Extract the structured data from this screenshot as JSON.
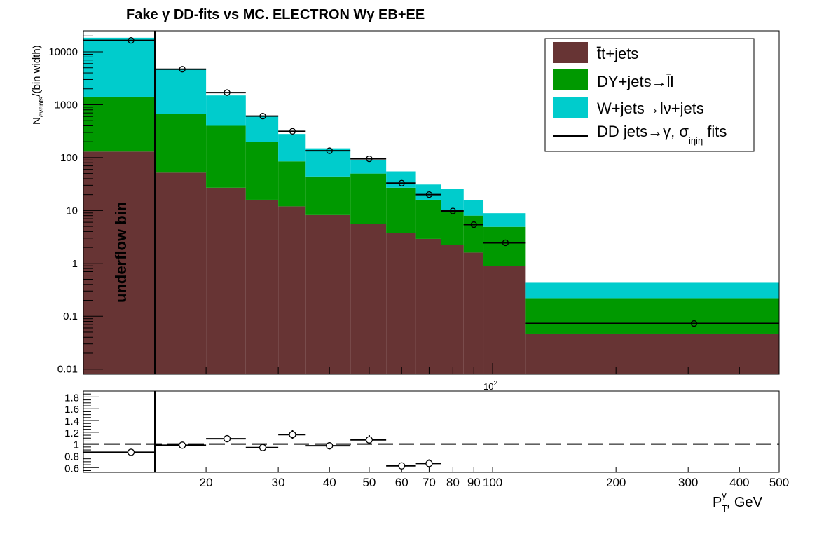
{
  "chart_data": {
    "type": "bar",
    "title": "Fake γ DD-fits vs MC. ELECTRON Wγ  EB+EE",
    "ylabel": "N_events/(bin width)",
    "ylabel_main": "N",
    "ylabel_sub": "events",
    "ylabel_rest": "/(bin width)",
    "xlabel": "P_T^γ, GeV",
    "xlabel_main": "P",
    "xlabel_sub": "T",
    "xlabel_sup": "γ",
    "xlabel_rest": ", GeV",
    "x_scale": "log",
    "y_scale": "log",
    "ylim": [
      0.008,
      25000
    ],
    "xlim": [
      10.5,
      500
    ],
    "annotation": "underflow bin",
    "axis_multiplier": "10",
    "axis_multiplier_exp": "2",
    "legend_position": "top-right",
    "bin_edges": [
      10.5,
      15,
      20,
      25,
      30,
      35,
      45,
      55,
      65,
      75,
      85,
      95,
      120,
      500
    ],
    "series": [
      {
        "name": "t̄t+jets",
        "color": "#673434",
        "values": [
          130,
          52,
          27,
          16,
          12,
          8.2,
          5.5,
          3.8,
          2.9,
          2.2,
          1.6,
          0.9,
          0.047
        ]
      },
      {
        "name": "DY+jets→l̄l",
        "color": "#009900",
        "values": [
          1290,
          628,
          373,
          184,
          73,
          35.8,
          44.5,
          23.2,
          13.1,
          7.8,
          6.4,
          4.0,
          0.173
        ]
      },
      {
        "name": "W+jets→lν+jets",
        "color": "#00cccc",
        "values": [
          17080,
          4000,
          1100,
          400,
          195,
          106,
          40,
          28,
          15,
          16,
          7.6,
          4.0,
          0.21
        ]
      }
    ],
    "stack_totals": [
      18500,
      4680,
      1500,
      600,
      280,
      150,
      90,
      55,
      31,
      26,
      15.6,
      8.9,
      0.43
    ],
    "dd_fit": {
      "name": "DD jets→γ, σ_iηiη fits",
      "legend_main": "DD jets→γ, σ",
      "legend_sub": "iηiη",
      "legend_rest": " fits",
      "points": [
        {
          "x": 13.5,
          "xlo": 10.5,
          "xhi": 15,
          "y": 16500
        },
        {
          "x": 17.5,
          "xlo": 15,
          "xhi": 20,
          "y": 4700
        },
        {
          "x": 22.5,
          "xlo": 20,
          "xhi": 25,
          "y": 1700
        },
        {
          "x": 27.5,
          "xlo": 25,
          "xhi": 30,
          "y": 610
        },
        {
          "x": 32.5,
          "xlo": 30,
          "xhi": 35,
          "y": 315
        },
        {
          "x": 40,
          "xlo": 35,
          "xhi": 45,
          "y": 135
        },
        {
          "x": 50,
          "xlo": 45,
          "xhi": 55,
          "y": 95
        },
        {
          "x": 60,
          "xlo": 55,
          "xhi": 65,
          "y": 33
        },
        {
          "x": 70,
          "xlo": 65,
          "xhi": 75,
          "y": 20
        },
        {
          "x": 80,
          "xlo": 75,
          "xhi": 85,
          "y": 9.8
        },
        {
          "x": 90,
          "xlo": 85,
          "xhi": 95,
          "y": 5.4
        },
        {
          "x": 107.5,
          "xlo": 95,
          "xhi": 120,
          "y": 2.45
        },
        {
          "x": 310,
          "xlo": 120,
          "xhi": 500,
          "y": 0.073
        }
      ]
    },
    "y_ticks": [
      "0.01",
      "0.1",
      "1",
      "10",
      "100",
      "1000",
      "10000"
    ],
    "x_ticks": [
      "20",
      "30",
      "40",
      "50",
      "60",
      "70",
      "80",
      "90",
      "100",
      "200",
      "300",
      "400",
      "500"
    ],
    "ratio": {
      "ylim": [
        0.52,
        1.9
      ],
      "y_ticks": [
        "0.6",
        "0.8",
        "1",
        "1.2",
        "1.4",
        "1.6",
        "1.8"
      ],
      "reference": 1.0,
      "points": [
        {
          "x": 13.5,
          "xlo": 10.5,
          "xhi": 15,
          "y": 0.86,
          "err": 0.0
        },
        {
          "x": 17.5,
          "xlo": 15,
          "xhi": 20,
          "y": 0.98,
          "err": 0.0
        },
        {
          "x": 22.5,
          "xlo": 20,
          "xhi": 25,
          "y": 1.09,
          "err": 0.0
        },
        {
          "x": 27.5,
          "xlo": 25,
          "xhi": 30,
          "y": 0.94,
          "err": 0.0
        },
        {
          "x": 32.5,
          "xlo": 30,
          "xhi": 35,
          "y": 1.16,
          "err": 0.08
        },
        {
          "x": 40,
          "xlo": 35,
          "xhi": 45,
          "y": 0.97,
          "err": 0.06
        },
        {
          "x": 50,
          "xlo": 45,
          "xhi": 55,
          "y": 1.07,
          "err": 0.08
        },
        {
          "x": 60,
          "xlo": 55,
          "xhi": 65,
          "y": 0.63,
          "err": 0.05
        },
        {
          "x": 70,
          "xlo": 65,
          "xhi": 75,
          "y": 0.67,
          "err": 0.07
        }
      ]
    }
  }
}
